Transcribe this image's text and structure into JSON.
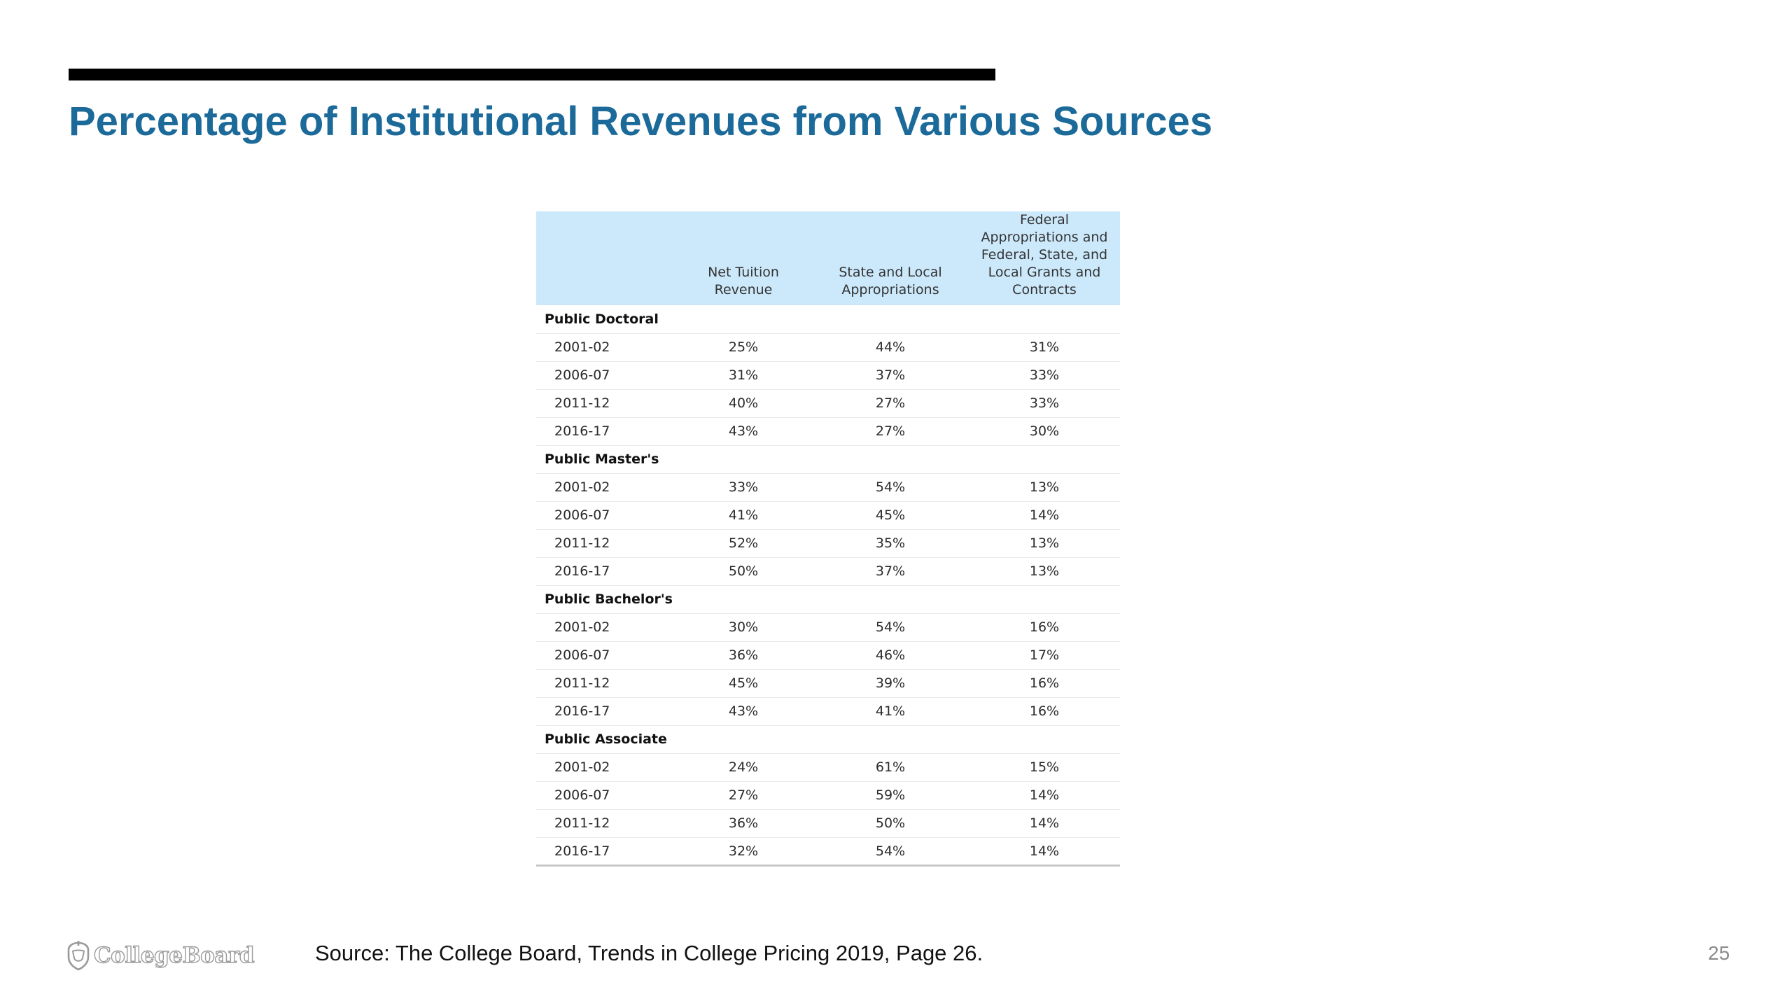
{
  "slide": {
    "title": "Percentage of Institutional Revenues from Various Sources",
    "source": "Source: The College Board, Trends in College Pricing 2019, Page 26.",
    "page_number": "25",
    "logo_text": "CollegeBoard"
  },
  "table": {
    "headers": [
      "",
      "Net Tuition Revenue",
      "State and Local Appropriations",
      "Federal Appropriations and Federal, State, and Local Grants and Contracts"
    ],
    "groups": [
      {
        "name": "Public Doctoral",
        "rows": [
          [
            "2001-02",
            "25%",
            "44%",
            "31%"
          ],
          [
            "2006-07",
            "31%",
            "37%",
            "33%"
          ],
          [
            "2011-12",
            "40%",
            "27%",
            "33%"
          ],
          [
            "2016-17",
            "43%",
            "27%",
            "30%"
          ]
        ]
      },
      {
        "name": "Public Master's",
        "rows": [
          [
            "2001-02",
            "33%",
            "54%",
            "13%"
          ],
          [
            "2006-07",
            "41%",
            "45%",
            "14%"
          ],
          [
            "2011-12",
            "52%",
            "35%",
            "13%"
          ],
          [
            "2016-17",
            "50%",
            "37%",
            "13%"
          ]
        ]
      },
      {
        "name": "Public Bachelor's",
        "rows": [
          [
            "2001-02",
            "30%",
            "54%",
            "16%"
          ],
          [
            "2006-07",
            "36%",
            "46%",
            "17%"
          ],
          [
            "2011-12",
            "45%",
            "39%",
            "16%"
          ],
          [
            "2016-17",
            "43%",
            "41%",
            "16%"
          ]
        ]
      },
      {
        "name": "Public Associate",
        "rows": [
          [
            "2001-02",
            "24%",
            "61%",
            "15%"
          ],
          [
            "2006-07",
            "27%",
            "59%",
            "14%"
          ],
          [
            "2011-12",
            "36%",
            "50%",
            "14%"
          ],
          [
            "2016-17",
            "32%",
            "54%",
            "14%"
          ]
        ]
      }
    ]
  },
  "colors": {
    "title": "#1b6a99",
    "header_bg": "#cce9fb",
    "rule": "#000000"
  }
}
